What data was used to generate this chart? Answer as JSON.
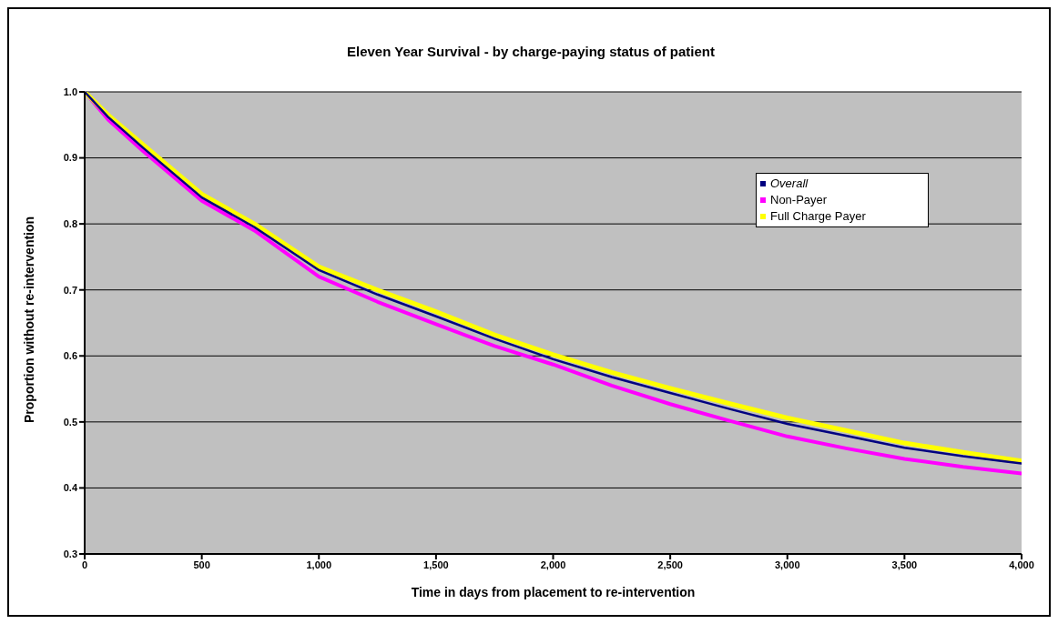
{
  "chart_data": {
    "type": "line",
    "title": "Eleven Year Survival - by charge-paying status of patient",
    "xlabel": "Time in days from placement to re-intervention",
    "ylabel": "Proportion without re-intervention",
    "x": [
      0,
      100,
      250,
      500,
      725,
      1000,
      1250,
      1500,
      1750,
      2000,
      2250,
      2500,
      2750,
      3000,
      3250,
      3500,
      3750,
      4000
    ],
    "series": [
      {
        "name": "Overall",
        "color": "#000080",
        "values": [
          1.0,
          0.962,
          0.915,
          0.84,
          0.795,
          0.73,
          0.693,
          0.66,
          0.626,
          0.595,
          0.568,
          0.544,
          0.52,
          0.497,
          0.479,
          0.461,
          0.448,
          0.437
        ]
      },
      {
        "name": "Non-Payer",
        "color": "#ff00ff",
        "values": [
          1.0,
          0.958,
          0.91,
          0.835,
          0.79,
          0.72,
          0.682,
          0.648,
          0.615,
          0.587,
          0.555,
          0.527,
          0.502,
          0.478,
          0.46,
          0.444,
          0.432,
          0.422
        ]
      },
      {
        "name": "Full Charge Payer",
        "color": "#ffff00",
        "values": [
          1.0,
          0.965,
          0.92,
          0.845,
          0.8,
          0.735,
          0.7,
          0.667,
          0.632,
          0.602,
          0.575,
          0.551,
          0.528,
          0.506,
          0.487,
          0.468,
          0.454,
          0.441
        ]
      }
    ],
    "xlim": [
      0,
      4000
    ],
    "xticks": [
      0,
      500,
      {
        "value": 1000,
        "label": "1,000"
      },
      {
        "value": 1500,
        "label": "1,500"
      },
      {
        "value": 2000,
        "label": "2,000"
      },
      {
        "value": 2500,
        "label": "2,500"
      },
      {
        "value": 3000,
        "label": "3,000"
      },
      {
        "value": 3500,
        "label": "3,500"
      },
      {
        "value": 4000,
        "label": "4,000"
      }
    ],
    "ylim": [
      0.3,
      1.0
    ],
    "yticks": [
      0.3,
      0.4,
      0.5,
      0.6,
      0.7,
      0.8,
      0.9,
      {
        "value": 1.0,
        "label": "1.0"
      }
    ],
    "grid": "y",
    "legend": "top right",
    "marker": "none",
    "line_style": "solid"
  }
}
